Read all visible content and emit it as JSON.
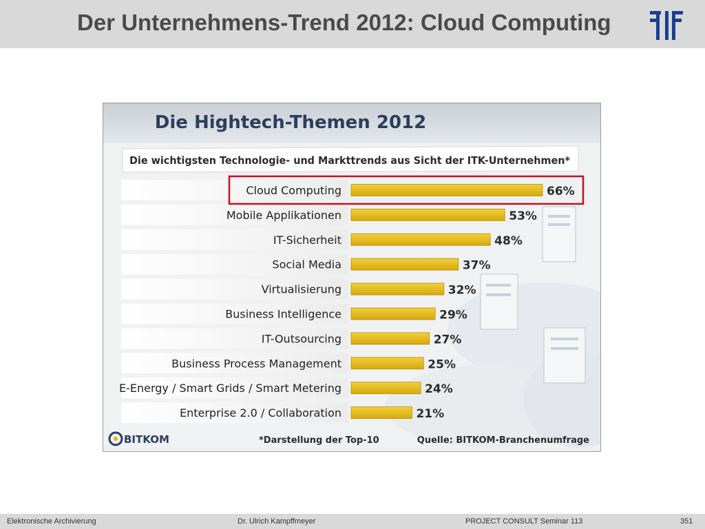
{
  "slide": {
    "title": "Der Unternehmens-Trend 2012: Cloud Computing"
  },
  "footer": {
    "left": "Elektronische Archivierung",
    "center": "Dr. Ulrich Kampffmeyer",
    "seminar": "PROJECT CONSULT Seminar 113",
    "page": "351"
  },
  "chart_data": {
    "type": "bar",
    "orientation": "horizontal",
    "title": "Die Hightech-Themen 2012",
    "subtitle": "Die wichtigsten Technologie- und Markttrends aus Sicht der ITK-Unternehmen*",
    "categories": [
      "Cloud Computing",
      "Mobile Applikationen",
      "IT-Sicherheit",
      "Social Media",
      "Virtualisierung",
      "Business Intelligence",
      "IT-Outsourcing",
      "Business Process Management",
      "E-Energy / Smart Grids / Smart Metering",
      "Enterprise 2.0 / Collaboration"
    ],
    "values": [
      66,
      53,
      48,
      37,
      32,
      29,
      27,
      25,
      24,
      21
    ],
    "value_labels": [
      "66%",
      "53%",
      "48%",
      "37%",
      "32%",
      "29%",
      "27%",
      "25%",
      "24%",
      "21%"
    ],
    "bar_color": "#e2b716",
    "highlight_index": 0,
    "highlight_color": "#c0121e",
    "footnote": "*Darstellung der Top-10",
    "source": "Quelle: BITKOM-Branchenumfrage",
    "brand": "BITKOM"
  }
}
